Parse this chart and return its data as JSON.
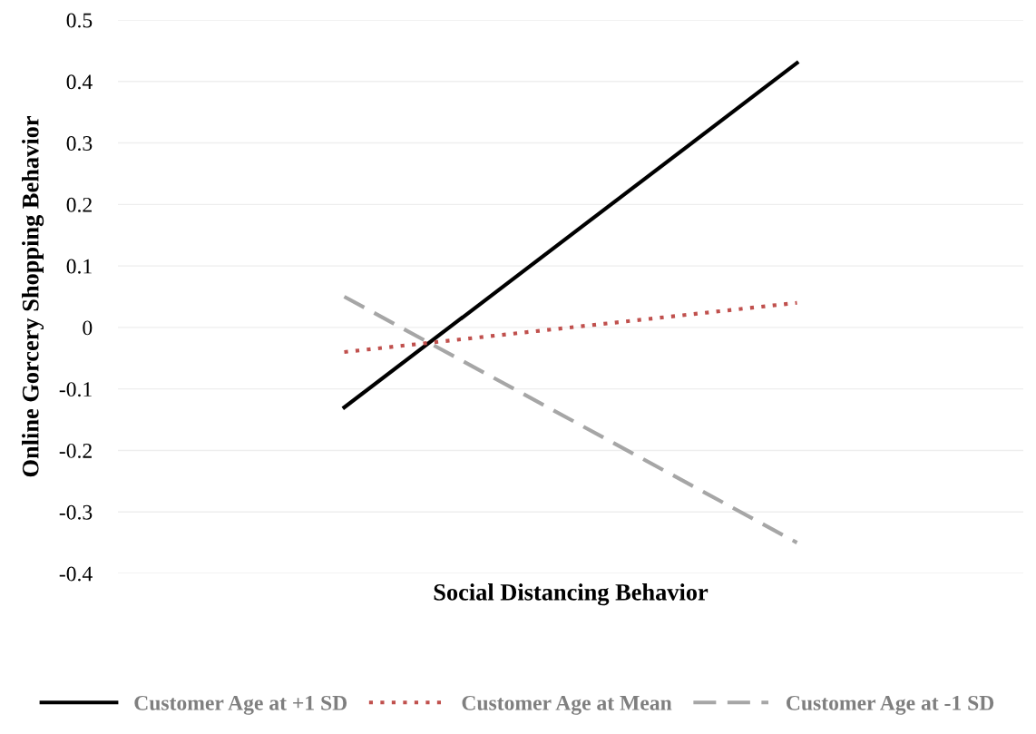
{
  "chart_data": {
    "type": "line",
    "xlabel": "Social Distancing Behavior",
    "ylabel": "Online Gorcery Shopping Behavior",
    "categories": [
      null,
      null
    ],
    "series": [
      {
        "name": "Customer Age at +1 SD",
        "color": "#000000",
        "values": [
          -0.13,
          0.43
        ],
        "line_style": "solid"
      },
      {
        "name": "Customer Age at Mean",
        "color": "#c0504d",
        "values": [
          -0.04,
          0.04
        ],
        "line_style": "dotted"
      },
      {
        "name": "Customer Age at -1 SD",
        "color": "#a6a6a6",
        "values": [
          0.05,
          -0.35
        ],
        "line_style": "dashed"
      }
    ],
    "ylim": [
      -0.4,
      0.5
    ],
    "yticks": [
      {
        "value": -0.4,
        "label": "-0.4"
      },
      {
        "value": -0.3,
        "label": "-0.3"
      },
      {
        "value": -0.2,
        "label": "-0.2"
      },
      {
        "value": -0.1,
        "label": "-0.1"
      },
      0,
      0.1,
      0.2,
      0.3,
      0.4,
      0.5
    ],
    "grid": "y",
    "legend": "bottom",
    "tick_labels": "y"
  }
}
